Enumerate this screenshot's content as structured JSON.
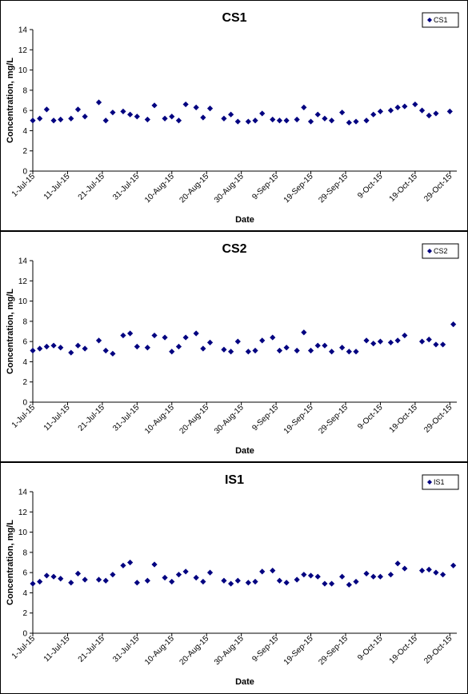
{
  "chart_data": [
    {
      "type": "scatter",
      "title": "CS1",
      "xlabel": "Date",
      "ylabel": "Concentration, mg/L",
      "ylim": [
        0,
        14
      ],
      "yticks": [
        0,
        2,
        4,
        6,
        8,
        10,
        12,
        14
      ],
      "xlim": [
        "2015-07-01",
        "2015-10-31"
      ],
      "xticks": [
        "1-Jul-15",
        "11-Jul-15",
        "21-Jul-15",
        "31-Jul-15",
        "10-Aug-15",
        "20-Aug-15",
        "30-Aug-15",
        "9-Sep-15",
        "19-Sep-15",
        "29-Sep-15",
        "9-Oct-15",
        "19-Oct-15",
        "29-Oct-15"
      ],
      "xtick_dates": [
        "2015-07-01",
        "2015-07-11",
        "2015-07-21",
        "2015-07-31",
        "2015-08-10",
        "2015-08-20",
        "2015-08-30",
        "2015-09-09",
        "2015-09-19",
        "2015-09-29",
        "2015-10-09",
        "2015-10-19",
        "2015-10-29"
      ],
      "grid": false,
      "legend_position": "top-right",
      "marker_color": "#000080",
      "series": [
        {
          "name": "CS1",
          "x": [
            "2015-07-01",
            "2015-07-03",
            "2015-07-05",
            "2015-07-07",
            "2015-07-09",
            "2015-07-12",
            "2015-07-14",
            "2015-07-16",
            "2015-07-20",
            "2015-07-22",
            "2015-07-24",
            "2015-07-27",
            "2015-07-29",
            "2015-07-31",
            "2015-08-03",
            "2015-08-05",
            "2015-08-08",
            "2015-08-10",
            "2015-08-12",
            "2015-08-14",
            "2015-08-17",
            "2015-08-19",
            "2015-08-21",
            "2015-08-25",
            "2015-08-27",
            "2015-08-29",
            "2015-09-01",
            "2015-09-03",
            "2015-09-05",
            "2015-09-08",
            "2015-09-10",
            "2015-09-12",
            "2015-09-15",
            "2015-09-17",
            "2015-09-19",
            "2015-09-21",
            "2015-09-23",
            "2015-09-25",
            "2015-09-28",
            "2015-09-30",
            "2015-10-02",
            "2015-10-05",
            "2015-10-07",
            "2015-10-09",
            "2015-10-12",
            "2015-10-14",
            "2015-10-16",
            "2015-10-19",
            "2015-10-21",
            "2015-10-23",
            "2015-10-25",
            "2015-10-29"
          ],
          "y": [
            5.0,
            5.2,
            6.1,
            5.0,
            5.1,
            5.2,
            6.1,
            5.4,
            6.8,
            5.0,
            5.8,
            5.9,
            5.6,
            5.4,
            5.1,
            6.5,
            5.2,
            5.4,
            5.0,
            6.6,
            6.3,
            5.3,
            6.2,
            5.2,
            5.6,
            4.9,
            4.9,
            5.0,
            5.7,
            5.1,
            5.0,
            5.0,
            5.1,
            6.3,
            4.9,
            5.6,
            5.2,
            5.0,
            5.8,
            4.8,
            4.9,
            5.0,
            5.6,
            5.9,
            6.0,
            6.3,
            6.4,
            6.6,
            6.0,
            5.5,
            5.7,
            5.9
          ]
        }
      ]
    },
    {
      "type": "scatter",
      "title": "CS2",
      "xlabel": "Date",
      "ylabel": "Concentration, mg/L",
      "ylim": [
        0,
        14
      ],
      "yticks": [
        0,
        2,
        4,
        6,
        8,
        10,
        12,
        14
      ],
      "xlim": [
        "2015-07-01",
        "2015-10-31"
      ],
      "xticks": [
        "1-Jul-15",
        "11-Jul-15",
        "21-Jul-15",
        "31-Jul-15",
        "10-Aug-15",
        "20-Aug-15",
        "30-Aug-15",
        "9-Sep-15",
        "19-Sep-15",
        "29-Sep-15",
        "9-Oct-15",
        "19-Oct-15",
        "29-Oct-15"
      ],
      "xtick_dates": [
        "2015-07-01",
        "2015-07-11",
        "2015-07-21",
        "2015-07-31",
        "2015-08-10",
        "2015-08-20",
        "2015-08-30",
        "2015-09-09",
        "2015-09-19",
        "2015-09-29",
        "2015-10-09",
        "2015-10-19",
        "2015-10-29"
      ],
      "grid": false,
      "legend_position": "top-right",
      "marker_color": "#000080",
      "series": [
        {
          "name": "CS2",
          "x": [
            "2015-07-01",
            "2015-07-03",
            "2015-07-05",
            "2015-07-07",
            "2015-07-09",
            "2015-07-12",
            "2015-07-14",
            "2015-07-16",
            "2015-07-20",
            "2015-07-22",
            "2015-07-24",
            "2015-07-27",
            "2015-07-29",
            "2015-07-31",
            "2015-08-03",
            "2015-08-05",
            "2015-08-08",
            "2015-08-10",
            "2015-08-12",
            "2015-08-14",
            "2015-08-17",
            "2015-08-19",
            "2015-08-21",
            "2015-08-25",
            "2015-08-27",
            "2015-08-29",
            "2015-09-01",
            "2015-09-03",
            "2015-09-05",
            "2015-09-08",
            "2015-09-10",
            "2015-09-12",
            "2015-09-15",
            "2015-09-17",
            "2015-09-19",
            "2015-09-21",
            "2015-09-23",
            "2015-09-25",
            "2015-09-28",
            "2015-09-30",
            "2015-10-02",
            "2015-10-05",
            "2015-10-07",
            "2015-10-09",
            "2015-10-12",
            "2015-10-14",
            "2015-10-16",
            "2015-10-21",
            "2015-10-23",
            "2015-10-25",
            "2015-10-27",
            "2015-10-30"
          ],
          "y": [
            5.1,
            5.3,
            5.5,
            5.6,
            5.4,
            4.9,
            5.6,
            5.3,
            6.1,
            5.1,
            4.8,
            6.6,
            6.8,
            5.5,
            5.4,
            6.6,
            6.4,
            5.0,
            5.5,
            6.4,
            6.8,
            5.3,
            5.9,
            5.2,
            5.0,
            6.0,
            5.0,
            5.1,
            6.1,
            6.4,
            5.1,
            5.4,
            5.1,
            6.9,
            5.1,
            5.6,
            5.6,
            5.0,
            5.4,
            5.0,
            5.0,
            6.1,
            5.8,
            6.0,
            5.9,
            6.1,
            6.6,
            6.0,
            6.2,
            5.7,
            5.7,
            7.7
          ]
        }
      ]
    },
    {
      "type": "scatter",
      "title": "IS1",
      "xlabel": "Date",
      "ylabel": "Concentration, mg/L",
      "ylim": [
        0,
        14
      ],
      "yticks": [
        0,
        2,
        4,
        6,
        8,
        10,
        12,
        14
      ],
      "xlim": [
        "2015-07-01",
        "2015-10-31"
      ],
      "xticks": [
        "1-Jul-15",
        "11-Jul-15",
        "21-Jul-15",
        "31-Jul-15",
        "10-Aug-15",
        "20-Aug-15",
        "30-Aug-15",
        "9-Sep-15",
        "19-Sep-15",
        "29-Sep-15",
        "9-Oct-15",
        "19-Oct-15",
        "29-Oct-15"
      ],
      "xtick_dates": [
        "2015-07-01",
        "2015-07-11",
        "2015-07-21",
        "2015-07-31",
        "2015-08-10",
        "2015-08-20",
        "2015-08-30",
        "2015-09-09",
        "2015-09-19",
        "2015-09-29",
        "2015-10-09",
        "2015-10-19",
        "2015-10-29"
      ],
      "grid": false,
      "legend_position": "top-right",
      "marker_color": "#000080",
      "series": [
        {
          "name": "IS1",
          "x": [
            "2015-07-01",
            "2015-07-03",
            "2015-07-05",
            "2015-07-07",
            "2015-07-09",
            "2015-07-12",
            "2015-07-14",
            "2015-07-16",
            "2015-07-20",
            "2015-07-22",
            "2015-07-24",
            "2015-07-27",
            "2015-07-29",
            "2015-07-31",
            "2015-08-03",
            "2015-08-05",
            "2015-08-08",
            "2015-08-10",
            "2015-08-12",
            "2015-08-14",
            "2015-08-17",
            "2015-08-19",
            "2015-08-21",
            "2015-08-25",
            "2015-08-27",
            "2015-08-29",
            "2015-09-01",
            "2015-09-03",
            "2015-09-05",
            "2015-09-08",
            "2015-09-10",
            "2015-09-12",
            "2015-09-15",
            "2015-09-17",
            "2015-09-19",
            "2015-09-21",
            "2015-09-23",
            "2015-09-25",
            "2015-09-28",
            "2015-09-30",
            "2015-10-02",
            "2015-10-05",
            "2015-10-07",
            "2015-10-09",
            "2015-10-12",
            "2015-10-14",
            "2015-10-16",
            "2015-10-21",
            "2015-10-23",
            "2015-10-25",
            "2015-10-27",
            "2015-10-30"
          ],
          "y": [
            4.9,
            5.1,
            5.7,
            5.6,
            5.4,
            5.0,
            5.9,
            5.3,
            5.3,
            5.2,
            5.8,
            6.7,
            7.0,
            5.0,
            5.2,
            6.8,
            5.5,
            5.1,
            5.8,
            6.1,
            5.5,
            5.1,
            6.0,
            5.2,
            4.9,
            5.2,
            5.0,
            5.1,
            6.1,
            6.2,
            5.2,
            5.0,
            5.3,
            5.8,
            5.7,
            5.6,
            4.9,
            4.9,
            5.6,
            4.8,
            5.1,
            5.9,
            5.6,
            5.6,
            5.8,
            6.9,
            6.4,
            6.2,
            6.3,
            6.0,
            5.8,
            6.7
          ]
        }
      ]
    }
  ]
}
